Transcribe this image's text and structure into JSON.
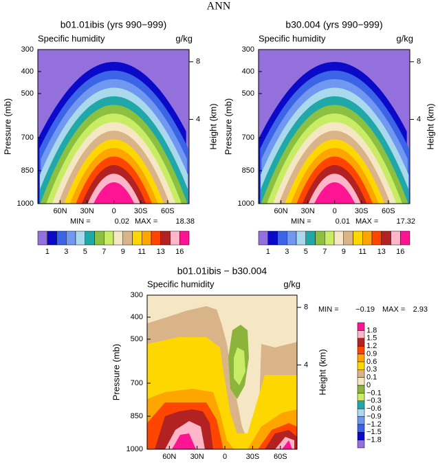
{
  "title": "ANN",
  "chart_data": [
    {
      "type": "contour",
      "title": "b01.01ibis (yrs 990−999)",
      "subtitle_left": "Specific humidity",
      "subtitle_right": "g/kg",
      "ylabel": "Pressure (mb)",
      "y2label": "Height (km)",
      "xlim": [
        85,
        -84
      ],
      "xticks": [
        {
          "value": 60,
          "label": "60N"
        },
        {
          "value": 30,
          "label": "30N"
        },
        0,
        {
          "value": -30,
          "label": "30S"
        },
        {
          "value": -60,
          "label": "60S"
        }
      ],
      "ylim": [
        1000,
        300
      ],
      "yticks": [
        300,
        400,
        500,
        700,
        850,
        1000
      ],
      "y2lim": [
        -1.85,
        8.85
      ],
      "y2ticks": [
        4,
        8
      ],
      "min_label": "MIN =",
      "min": 0.02,
      "max_label": "MAX =",
      "max": 18.38,
      "levels": [
        1,
        null,
        3,
        null,
        5,
        null,
        7,
        null,
        9,
        null,
        11,
        null,
        13,
        null,
        16
      ],
      "colors": [
        "#9370db",
        "#0a0ac8",
        "#3c64e6",
        "#7098f0",
        "#aad8ec",
        "#20a8a8",
        "#8cc040",
        "#c8ec64",
        "#f5e6c4",
        "#d8b488",
        "#ffd700",
        "#ffa500",
        "#ff4500",
        "#b22222",
        "#ffb6c8",
        "#ff1493"
      ]
    },
    {
      "type": "contour",
      "title": "b30.004 (yrs 990−999)",
      "subtitle_left": "Specific humidity",
      "subtitle_right": "g/kg",
      "ylabel": "Pressure (mb)",
      "y2label": "Height (km)",
      "xlim": [
        85,
        -84
      ],
      "xticks": [
        {
          "value": 60,
          "label": "60N"
        },
        {
          "value": 30,
          "label": "30N"
        },
        0,
        {
          "value": -30,
          "label": "30S"
        },
        {
          "value": -60,
          "label": "60S"
        }
      ],
      "ylim": [
        1000,
        300
      ],
      "yticks": [
        300,
        400,
        500,
        700,
        850,
        1000
      ],
      "y2lim": [
        -1.85,
        8.85
      ],
      "y2ticks": [
        4,
        8
      ],
      "min_label": "MIN =",
      "min": 0.01,
      "max_label": "MAX =",
      "max": 17.32,
      "levels": [
        1,
        null,
        3,
        null,
        5,
        null,
        7,
        null,
        9,
        null,
        11,
        null,
        13,
        null,
        16
      ],
      "colors": [
        "#9370db",
        "#0a0ac8",
        "#3c64e6",
        "#7098f0",
        "#aad8ec",
        "#20a8a8",
        "#8cc040",
        "#c8ec64",
        "#f5e6c4",
        "#d8b488",
        "#ffd700",
        "#ffa500",
        "#ff4500",
        "#b22222",
        "#ffb6c8",
        "#ff1493"
      ]
    },
    {
      "type": "contour-diff",
      "title": "b01.01ibis − b30.004",
      "subtitle_left": "Specific humidity",
      "subtitle_right": "g/kg",
      "ylabel": "Pressure (mb)",
      "y2label": "Height (km)",
      "xlim": [
        84,
        -78
      ],
      "xticks": [
        {
          "value": 60,
          "label": "60N"
        },
        {
          "value": 30,
          "label": "30N"
        },
        0,
        {
          "value": -30,
          "label": "30S"
        },
        {
          "value": -60,
          "label": "60S"
        }
      ],
      "ylim": [
        1000,
        300
      ],
      "yticks": [
        300,
        400,
        500,
        700,
        850,
        1000
      ],
      "y2lim": [
        -1.85,
        8.85
      ],
      "y2ticks": [
        4,
        8
      ],
      "min_label": "MIN =",
      "min": {
        "value": -0.19,
        "label": "−0.19"
      },
      "max_label": "MAX =",
      "max": 2.93,
      "levels": [
        {
          "value": -1.8,
          "label": "−1.8"
        },
        {
          "value": -1.5,
          "label": "−1.5"
        },
        {
          "value": -1.2,
          "label": "−1.2"
        },
        {
          "value": -0.9,
          "label": "−0.9"
        },
        {
          "value": -0.6,
          "label": "−0.6"
        },
        {
          "value": -0.3,
          "label": "−0.3"
        },
        {
          "value": -0.1,
          "label": "−0.1"
        },
        0,
        0.1,
        0.3,
        0.6,
        0.9,
        1.2,
        1.5,
        1.8
      ],
      "colors": [
        "#9370db",
        "#0a0ac8",
        "#3c64e6",
        "#7098f0",
        "#aad8ec",
        "#20a8a8",
        "#c8ec64",
        "#8cb43c",
        "#f5e6c4",
        "#d8b488",
        "#ffd700",
        "#ffa500",
        "#ff4500",
        "#b22222",
        "#ffb6c8",
        "#ff1493"
      ]
    }
  ]
}
